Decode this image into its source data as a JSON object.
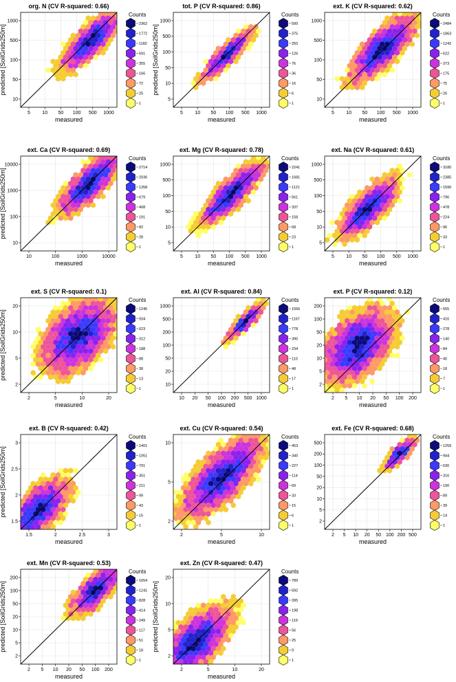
{
  "chart_data": [
    {
      "type": "hexbin",
      "title": "org. N  (CV R-squared: 0.66)",
      "r2": 0.66,
      "xlabel": "measured",
      "ylabel": "predicted [SoilGrids250m]",
      "scale": "log",
      "xticks": [
        "5",
        "10",
        "50",
        "100",
        "500",
        "1000"
      ],
      "yticks": [
        "10",
        "50",
        "100",
        "500",
        "1000"
      ],
      "ylabel_shown": true,
      "legend_title": "Counts",
      "legend": [
        "2362",
        "1772",
        "1182",
        "591",
        "355",
        "166",
        "72",
        "25",
        "1"
      ],
      "cluster": {
        "x": 0.72,
        "y": 0.7,
        "spread": 0.18
      }
    },
    {
      "type": "hexbin",
      "title": "tot. P  (CV R-squared: 0.86)",
      "r2": 0.86,
      "xlabel": "measured",
      "ylabel": "predicted [SoilGrids250m]",
      "scale": "log",
      "xticks": [
        "5",
        "10",
        "50",
        "100",
        "500",
        "1000"
      ],
      "yticks": [
        "5",
        "10",
        "50",
        "100",
        "500",
        "1000"
      ],
      "ylabel_shown": true,
      "legend_title": "Counts",
      "legend": [
        "500",
        "375",
        "250",
        "126",
        "76",
        "36",
        "16",
        "6",
        "1"
      ],
      "cluster": {
        "x": 0.55,
        "y": 0.55,
        "spread": 0.16
      }
    },
    {
      "type": "hexbin",
      "title": "ext. K  (CV R-squared: 0.62)",
      "r2": 0.62,
      "xlabel": "measured",
      "ylabel": "predicted [SoilGrids250m]",
      "scale": "log",
      "xticks": [
        "5",
        "10",
        "50",
        "100",
        "500",
        "1000"
      ],
      "yticks": [
        "10",
        "50",
        "100",
        "500",
        "1000"
      ],
      "ylabel_shown": false,
      "legend_title": "Counts",
      "legend": [
        "2484",
        "1863",
        "1242",
        "622",
        "373",
        "175",
        "75",
        "26",
        "1"
      ],
      "cluster": {
        "x": 0.6,
        "y": 0.62,
        "spread": 0.2
      }
    },
    {
      "type": "hexbin",
      "title": "ext. Ca  (CV R-squared: 0.69)",
      "r2": 0.69,
      "xlabel": "measured",
      "ylabel": "predicted [SoilGrids250m]",
      "scale": "log",
      "xticks": [
        "10",
        "100",
        "1000",
        "10000"
      ],
      "yticks": [
        "10",
        "100",
        "1000",
        "10000"
      ],
      "ylabel_shown": true,
      "legend_title": "Counts",
      "legend": [
        "2714",
        "2036",
        "1358",
        "679",
        "408",
        "191",
        "82",
        "28",
        "1"
      ],
      "cluster": {
        "x": 0.72,
        "y": 0.72,
        "spread": 0.2
      }
    },
    {
      "type": "hexbin",
      "title": "ext. Mg  (CV R-squared: 0.78)",
      "r2": 0.78,
      "xlabel": "measured",
      "ylabel": "predicted [SoilGrids250m]",
      "scale": "log",
      "xticks": [
        "5",
        "10",
        "50",
        "100",
        "500",
        "1000"
      ],
      "yticks": [
        "5",
        "10",
        "50",
        "100",
        "500",
        "1000"
      ],
      "ylabel_shown": false,
      "legend_title": "Counts",
      "legend": [
        "2241",
        "1681",
        "1121",
        "561",
        "337",
        "158",
        "68",
        "23",
        "1"
      ],
      "cluster": {
        "x": 0.6,
        "y": 0.6,
        "spread": 0.2
      }
    },
    {
      "type": "hexbin",
      "title": "ext. Na  (CV R-squared: 0.61)",
      "r2": 0.61,
      "xlabel": "measured",
      "ylabel": "predicted [SoilGrids250m]",
      "scale": "log",
      "xticks": [
        "5",
        "10",
        "50",
        "100",
        "500",
        "1000"
      ],
      "yticks": [
        "5",
        "10",
        "50",
        "100",
        "500",
        "1000"
      ],
      "ylabel_shown": false,
      "legend_title": "Counts",
      "legend": [
        "3180",
        "2385",
        "1590",
        "796",
        "478",
        "224",
        "96",
        "33",
        "1"
      ],
      "cluster": {
        "x": 0.45,
        "y": 0.45,
        "spread": 0.18
      }
    },
    {
      "type": "hexbin",
      "title": "ext. S  (CV R-squared: 0.1)",
      "r2": 0.1,
      "xlabel": "measured",
      "ylabel": "predicted [SoilGrids250m]",
      "scale": "log",
      "xticks": [
        "2",
        "5",
        "10",
        "20"
      ],
      "yticks": [
        "2",
        "5",
        "10",
        "20"
      ],
      "ylabel_shown": true,
      "legend_title": "Counts",
      "legend": [
        "1245",
        "934",
        "623",
        "312",
        "188",
        "88",
        "38",
        "13",
        "1"
      ],
      "cluster": {
        "x": 0.6,
        "y": 0.6,
        "spread": 0.2
      }
    },
    {
      "type": "hexbin",
      "title": "ext. Al  (CV R-squared: 0.84)",
      "r2": 0.84,
      "xlabel": "measured",
      "ylabel": "predicted [SoilGrids250m]",
      "scale": "log",
      "xticks": [
        "10",
        "20",
        "50",
        "100",
        "200",
        "500",
        "1000"
      ],
      "yticks": [
        "10",
        "20",
        "50",
        "100",
        "200",
        "500",
        "1000"
      ],
      "ylabel_shown": false,
      "legend_title": "Counts",
      "legend": [
        "1556",
        "1167",
        "778",
        "390",
        "234",
        "110",
        "48",
        "17",
        "1"
      ],
      "cluster": {
        "x": 0.75,
        "y": 0.75,
        "spread": 0.12
      }
    },
    {
      "type": "hexbin",
      "title": "ext. P  (CV R-squared: 0.12)",
      "r2": 0.12,
      "xlabel": "measured",
      "ylabel": "predicted [SoilGrids250m]",
      "scale": "log",
      "xticks": [
        "2",
        "5",
        "10",
        "20",
        "50",
        "100",
        "200"
      ],
      "yticks": [
        "2",
        "5",
        "10",
        "20",
        "50",
        "100",
        "200"
      ],
      "ylabel_shown": false,
      "legend_title": "Counts",
      "legend": [
        "555",
        "416",
        "278",
        "140",
        "84",
        "40",
        "18",
        "7",
        "1"
      ],
      "cluster": {
        "x": 0.35,
        "y": 0.5,
        "spread": 0.2
      }
    },
    {
      "type": "hexbin",
      "title": "ext. B  (CV R-squared: 0.42)",
      "r2": 0.42,
      "xlabel": "measured",
      "ylabel": "predicted [SoilGrids250m]",
      "scale": "log",
      "xticks": [
        "1.5",
        "2",
        "2.5",
        "3"
      ],
      "yticks": [
        "1.5",
        "2",
        "2.5",
        "3"
      ],
      "ylabel_shown": true,
      "legend_title": "Counts",
      "legend": [
        "1401",
        "1051",
        "701",
        "351",
        "211",
        "99",
        "43",
        "15",
        "1"
      ],
      "cluster": {
        "x": 0.18,
        "y": 0.2,
        "spread": 0.18
      }
    },
    {
      "type": "hexbin",
      "title": "ext. Cu  (CV R-squared: 0.54)",
      "r2": 0.54,
      "xlabel": "measured",
      "ylabel": "predicted [SoilGrids250m]",
      "scale": "log",
      "xticks": [
        "2",
        "5",
        "10"
      ],
      "yticks": [
        "2",
        "5",
        "10"
      ],
      "ylabel_shown": false,
      "legend_title": "Counts",
      "legend": [
        "453",
        "340",
        "227",
        "114",
        "69",
        "33",
        "15",
        "6",
        "1"
      ],
      "cluster": {
        "x": 0.5,
        "y": 0.55,
        "spread": 0.24
      }
    },
    {
      "type": "hexbin",
      "title": "ext. Fe  (CV R-squared: 0.68)",
      "r2": 0.68,
      "xlabel": "measured",
      "ylabel": "predicted [SoilGrids250m]",
      "scale": "log",
      "xticks": [
        "2",
        "5",
        "10",
        "20",
        "50",
        "100",
        "200",
        "500"
      ],
      "yticks": [
        "2",
        "5",
        "10",
        "20",
        "50",
        "100",
        "200",
        "500"
      ],
      "ylabel_shown": false,
      "legend_title": "Counts",
      "legend": [
        "1259",
        "944",
        "630",
        "316",
        "190",
        "89",
        "39",
        "14",
        "1"
      ],
      "cluster": {
        "x": 0.78,
        "y": 0.8,
        "spread": 0.1
      }
    },
    {
      "type": "hexbin",
      "title": "ext. Mn  (CV R-squared: 0.53)",
      "r2": 0.53,
      "xlabel": "measured",
      "ylabel": "predicted [SoilGrids250m]",
      "scale": "log",
      "xticks": [
        "2",
        "5",
        "10",
        "20",
        "50",
        "100",
        "200"
      ],
      "yticks": [
        "2",
        "5",
        "10",
        "20",
        "50",
        "100",
        "200"
      ],
      "ylabel_shown": true,
      "legend_title": "Counts",
      "legend": [
        "1654",
        "1241",
        "828",
        "414",
        "249",
        "117",
        "51",
        "18",
        "1"
      ],
      "cluster": {
        "x": 0.78,
        "y": 0.78,
        "spread": 0.15
      }
    },
    {
      "type": "hexbin",
      "title": "ext. Zn  (CV R-squared: 0.47)",
      "r2": 0.47,
      "xlabel": "measured",
      "ylabel": "predicted [SoilGrids250m]",
      "scale": "log",
      "xticks": [
        "2",
        "5",
        "10",
        "20"
      ],
      "yticks": [
        "2",
        "5",
        "10",
        "20"
      ],
      "ylabel_shown": true,
      "legend_title": "Counts",
      "legend": [
        "789",
        "592",
        "395",
        "198",
        "119",
        "56",
        "25",
        "9",
        "1"
      ],
      "cluster": {
        "x": 0.22,
        "y": 0.22,
        "spread": 0.22
      }
    }
  ],
  "palette": [
    "#0b0b7a",
    "#2222cc",
    "#3a3aff",
    "#8a22ee",
    "#cc33dd",
    "#ee5599",
    "#ff9966",
    "#f5cc33",
    "#ffff66"
  ]
}
